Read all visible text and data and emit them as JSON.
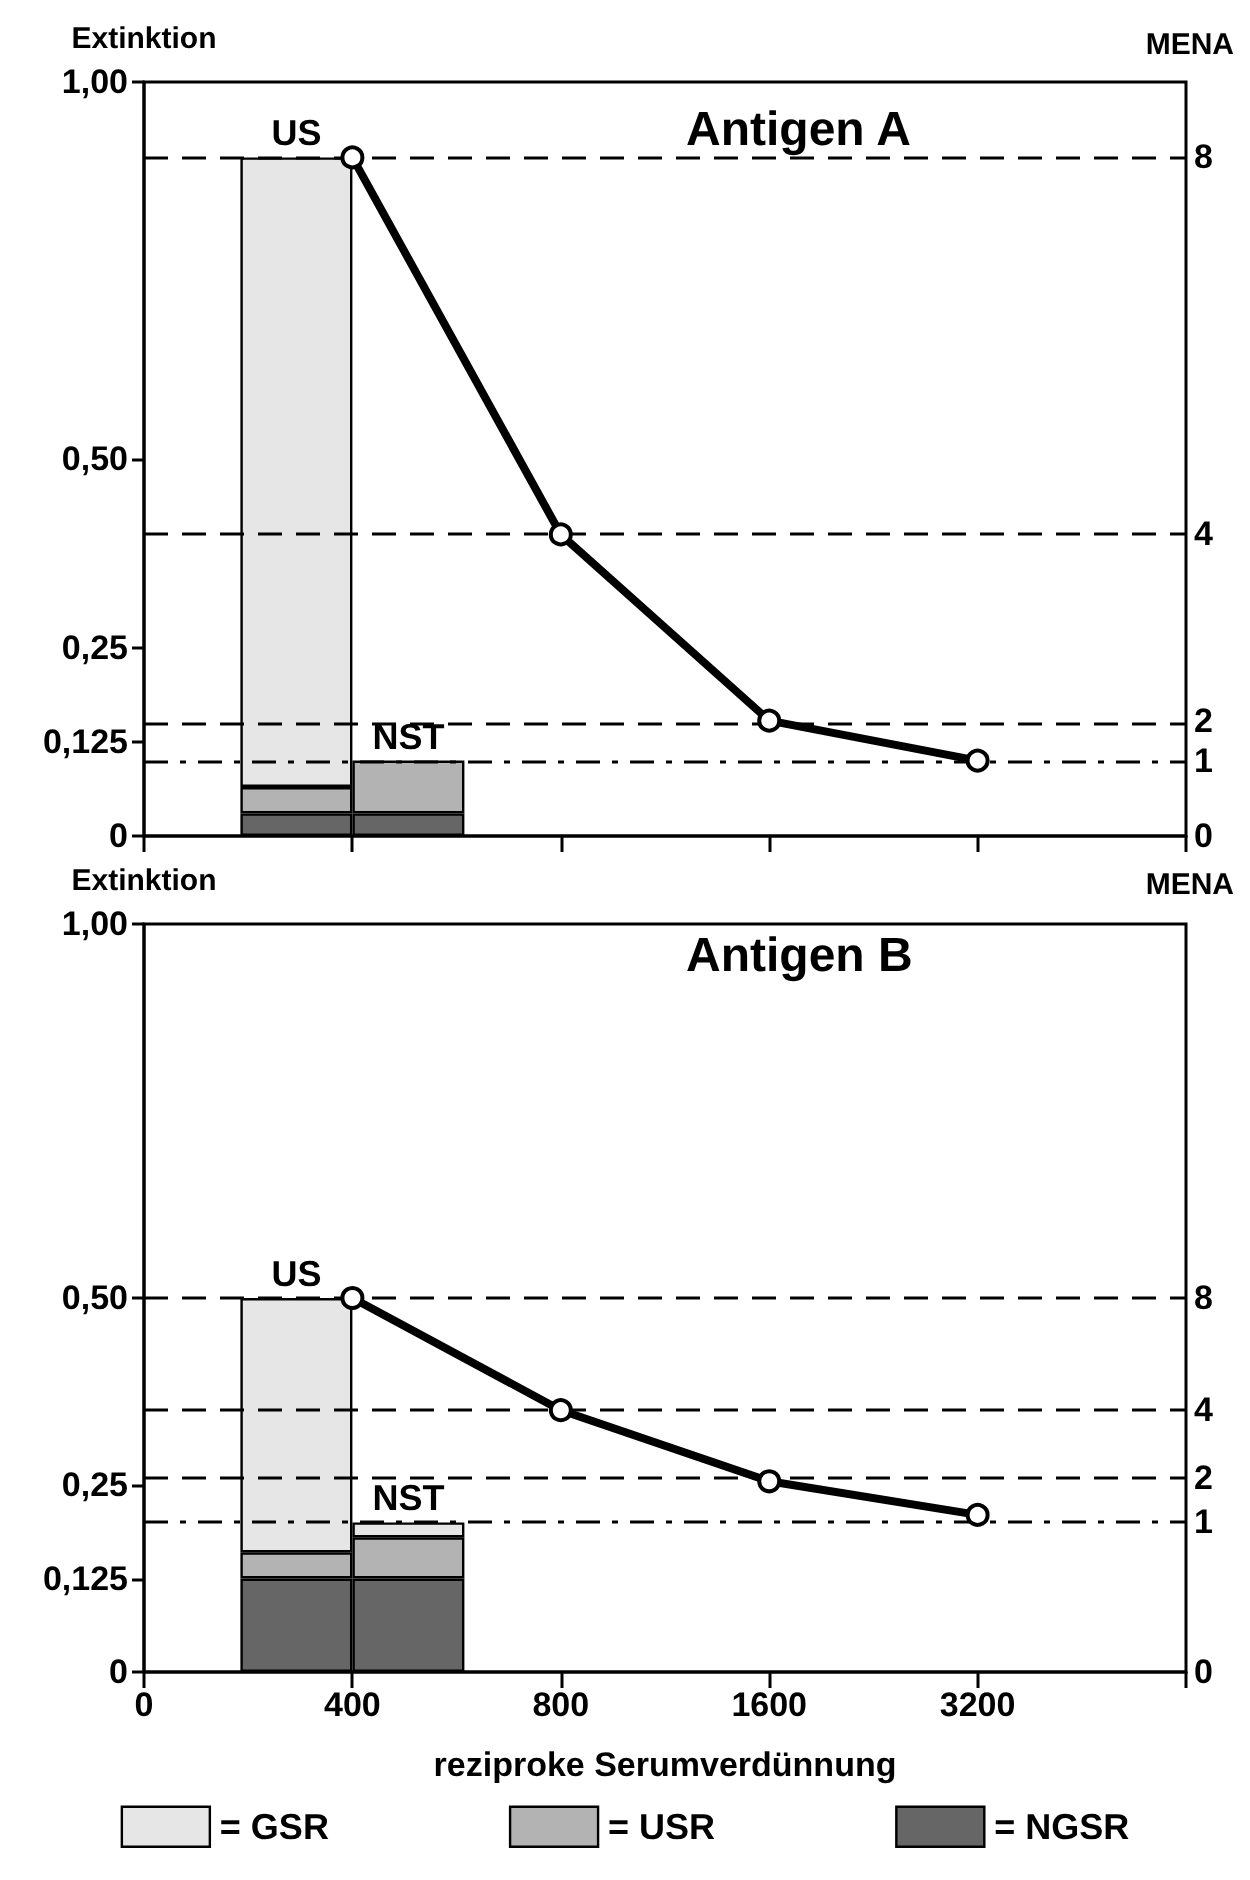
{
  "chart_data": [
    {
      "type": "bar",
      "title": "Antigen A",
      "ylabel": "Extinktion",
      "categories": [
        "0",
        "400",
        "800",
        "1600",
        "3200",
        null
      ],
      "stacked": true,
      "tick_labels": "y",
      "ylim": [
        0,
        1.0
      ],
      "yticks": [
        0,
        {
          "value": 0.125,
          "label": "0,125"
        },
        {
          "value": 0.25,
          "label": "0,25"
        },
        {
          "value": 0.5,
          "label": "0,50"
        },
        {
          "value": 1.0,
          "label": "1,00"
        }
      ],
      "series": [
        {
          "color": "#666666",
          "x": [
            "400",
            "400"
          ],
          "values": [
            0.03,
            0.03
          ]
        },
        {
          "color": "#b3b3b3",
          "x": [
            "400",
            "400"
          ],
          "values": [
            0.035,
            0.07
          ]
        },
        {
          "color": "#e6e6e6",
          "x": [
            "400",
            "400"
          ],
          "values": [
            0.835,
            null
          ]
        },
        {
          "type": "line",
          "color": "#000000",
          "values": [
            null,
            0.9,
            0.4,
            0.153,
            0.1,
            null
          ]
        }
      ],
      "marker": "circle",
      "ref_lines": [
        {
          "axis": "y",
          "value": 0.9,
          "line_style": "dashed"
        },
        {
          "axis": "y",
          "value": 0.4,
          "line_style": "dashed"
        },
        {
          "axis": "y",
          "value": 0.153,
          "line_style": "dashed"
        },
        {
          "axis": "y",
          "value": 0.1,
          "line_style": "dotted"
        }
      ],
      "annotations": [
        "MENA",
        {
          "text": "US",
          "x": "400",
          "y": 0.9
        },
        {
          "text": "NST",
          "x": "400",
          "y": 0.1
        },
        "8",
        "4",
        "2",
        "1",
        "0"
      ]
    },
    {
      "type": "bar",
      "title": "Antigen B",
      "ylabel": "Extinktion",
      "xlabel": "reziproke Serumverdünnung",
      "categories": [
        "0",
        "400",
        "800",
        "1600",
        "3200",
        null
      ],
      "stacked": true,
      "ylim": [
        0,
        1.0
      ],
      "yticks": [
        0,
        {
          "value": 0.125,
          "label": "0,125"
        },
        {
          "value": 0.25,
          "label": "0,25"
        },
        {
          "value": 0.5,
          "label": "0,50"
        },
        {
          "value": 1.0,
          "label": "1,00"
        }
      ],
      "series": [
        {
          "name": "= NGSR",
          "color": "#666666",
          "x": [
            "400",
            "400"
          ],
          "values": [
            0.125,
            0.125
          ]
        },
        {
          "name": "= USR",
          "color": "#b3b3b3",
          "x": [
            "400",
            "400"
          ],
          "values": [
            0.035,
            0.055
          ]
        },
        {
          "name": "= GSR",
          "color": "#e6e6e6",
          "x": [
            "400",
            "400"
          ],
          "values": [
            0.34,
            0.02
          ]
        },
        {
          "type": "line",
          "color": "#000000",
          "values": [
            null,
            0.5,
            0.35,
            0.255,
            0.21,
            null
          ]
        }
      ],
      "marker": "circle",
      "legend": "bottom",
      "ref_lines": [
        {
          "axis": "y",
          "value": 0.5,
          "line_style": "dashed"
        },
        {
          "axis": "y",
          "value": 0.35,
          "line_style": "dashed"
        },
        {
          "axis": "y",
          "value": 0.26,
          "line_style": "dashed"
        },
        {
          "axis": "y",
          "value": 0.2,
          "line_style": "dotted"
        }
      ],
      "annotations": [
        "MENA",
        {
          "text": "US",
          "x": "400",
          "y": 0.5
        },
        {
          "text": "NST",
          "x": "400",
          "y": 0.2
        },
        "8",
        "4",
        "2",
        "1",
        "0"
      ]
    }
  ]
}
